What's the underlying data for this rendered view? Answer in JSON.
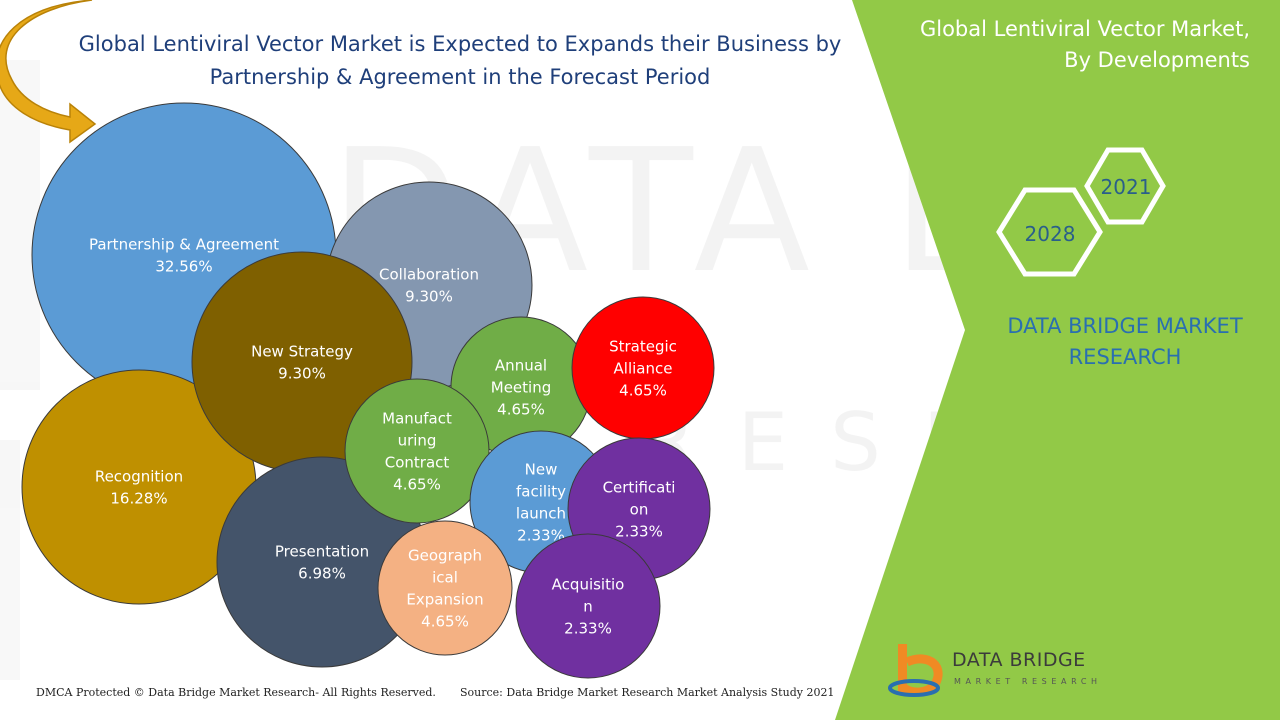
{
  "header": {
    "title_line1": "Global Lentiviral Vector Market is Expected to Expands their Business by",
    "title_line2": "Partnership & Agreement in the Forecast Period"
  },
  "side_panel": {
    "title_line1": "Global Lentiviral Vector Market,",
    "title_line2": "By Developments",
    "year_start": "2021",
    "year_end": "2028",
    "brand_line1": "DATA BRIDGE MARKET",
    "brand_line2": "RESEARCH"
  },
  "footer": {
    "copyright": "DMCA Protected © Data Bridge Market Research- All Rights Reserved.",
    "source": "Source: Data Bridge Market Research Market Analysis Study 2021"
  },
  "logo": {
    "name": "DATA BRIDGE",
    "tagline": "MARKET RESEARCH"
  },
  "colors": {
    "green_panel": "#92c947",
    "title_blue": "#1f3f7a",
    "arrow_gold": "#e6a817"
  },
  "chart_data": {
    "type": "bubble",
    "title": "Global Lentiviral Vector Market is Expected to Expands their Business by Partnership & Agreement in the Forecast Period",
    "unit": "%",
    "series": [
      {
        "name": "Partnership & Agreement",
        "label_lines": [
          "Partnership & Agreement"
        ],
        "value": 32.56,
        "value_label": "32.56%",
        "color": "#5b9bd5"
      },
      {
        "name": "Recognition",
        "label_lines": [
          "Recognition"
        ],
        "value": 16.28,
        "value_label": "16.28%",
        "color": "#bf9000"
      },
      {
        "name": "Collaboration",
        "label_lines": [
          "Collaboration"
        ],
        "value": 9.3,
        "value_label": "9.30%",
        "color": "#8497b0"
      },
      {
        "name": "New Strategy",
        "label_lines": [
          "New Strategy"
        ],
        "value": 9.3,
        "value_label": "9.30%",
        "color": "#7f6000"
      },
      {
        "name": "Presentation",
        "label_lines": [
          "Presentation"
        ],
        "value": 6.98,
        "value_label": "6.98%",
        "color": "#44546a"
      },
      {
        "name": "Annual Meeting",
        "label_lines": [
          "Annual",
          "Meeting"
        ],
        "value": 4.65,
        "value_label": "4.65%",
        "color": "#70ad47"
      },
      {
        "name": "Strategic Alliance",
        "label_lines": [
          "Strategic",
          "Alliance"
        ],
        "value": 4.65,
        "value_label": "4.65%",
        "color": "#ff0000"
      },
      {
        "name": "Manufacturing Contract",
        "label_lines": [
          "Manufact",
          "uring",
          "Contract"
        ],
        "value": 4.65,
        "value_label": "4.65%",
        "color": "#70ad47"
      },
      {
        "name": "New facility launch",
        "label_lines": [
          "New",
          "facility",
          "launch"
        ],
        "value": 2.33,
        "value_label": "2.33%",
        "color": "#5b9bd5"
      },
      {
        "name": "Certification",
        "label_lines": [
          "Certificati",
          "on"
        ],
        "value": 2.33,
        "value_label": "2.33%",
        "color": "#7030a0"
      },
      {
        "name": "Geographical Expansion",
        "label_lines": [
          "Geograph",
          "ical",
          "Expansion"
        ],
        "value": 4.65,
        "value_label": "4.65%",
        "color": "#f4b183"
      },
      {
        "name": "Acquisition",
        "label_lines": [
          "Acquisitio",
          "n"
        ],
        "value": 2.33,
        "value_label": "2.33%",
        "color": "#7030a0"
      }
    ]
  }
}
